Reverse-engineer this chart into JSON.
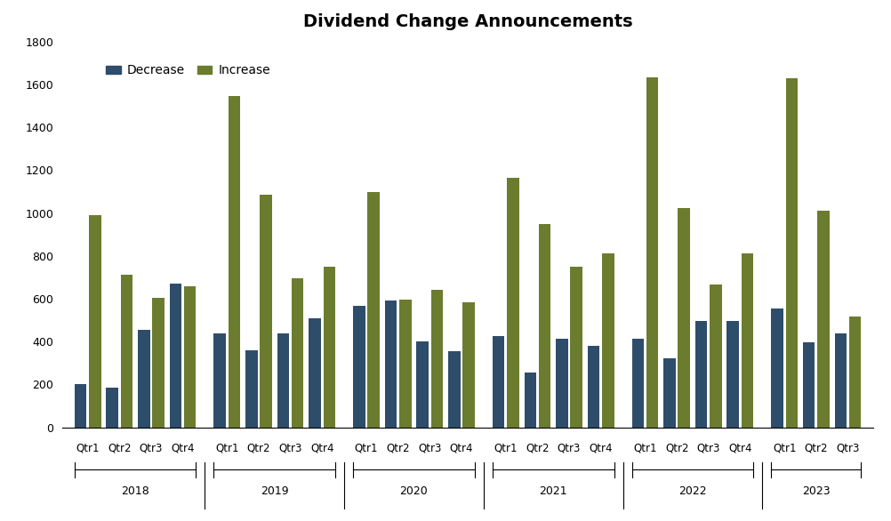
{
  "title": "Dividend Change Announcements",
  "quarters": [
    "Qtr1",
    "Qtr2",
    "Qtr3",
    "Qtr4",
    "Qtr1",
    "Qtr2",
    "Qtr3",
    "Qtr4",
    "Qtr1",
    "Qtr2",
    "Qtr3",
    "Qtr4",
    "Qtr1",
    "Qtr2",
    "Qtr3",
    "Qtr4",
    "Qtr1",
    "Qtr2",
    "Qtr3",
    "Qtr4",
    "Qtr1",
    "Qtr2",
    "Qtr3"
  ],
  "years": [
    "2018",
    "2019",
    "2020",
    "2021",
    "2022",
    "2023"
  ],
  "decrease": [
    200,
    185,
    455,
    670,
    440,
    360,
    440,
    510,
    565,
    590,
    400,
    355,
    425,
    255,
    415,
    380,
    415,
    320,
    495,
    495,
    555,
    395,
    440
  ],
  "increase": [
    990,
    710,
    605,
    660,
    1545,
    1085,
    695,
    750,
    1100,
    595,
    640,
    585,
    1165,
    950,
    750,
    810,
    1635,
    1025,
    665,
    810,
    1630,
    1010,
    515
  ],
  "decrease_color": "#2e4d6b",
  "increase_color": "#6b7c2e",
  "ylim": [
    0,
    1800
  ],
  "yticks": [
    0,
    200,
    400,
    600,
    800,
    1000,
    1200,
    1400,
    1600,
    1800
  ],
  "year_groups": [
    4,
    4,
    4,
    4,
    4,
    3
  ],
  "legend_labels": [
    "Decrease",
    "Increase"
  ],
  "background_color": "#ffffff",
  "title_fontsize": 14,
  "tick_fontsize": 9,
  "legend_fontsize": 10
}
